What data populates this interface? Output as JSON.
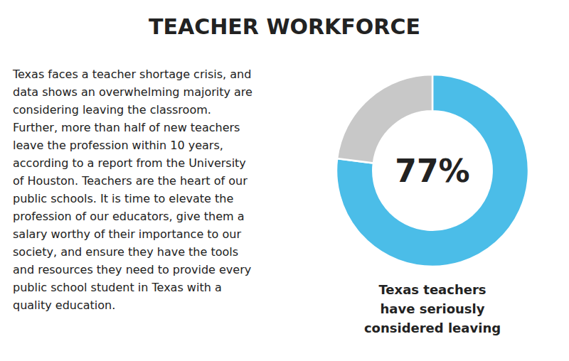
{
  "chart_data": {
    "type": "pie",
    "title": "TEACHER WORKFORCE",
    "body_text": [
      "Texas faces a teacher shortage crisis, and",
      "data shows an overwhelming majority are",
      "considering leaving the classroom.",
      "Further, more than half of new teachers",
      "leave the profession within 10 years,",
      "according to a report from the University",
      "of Houston. Teachers are the heart of our",
      "public schools. It is time to elevate the",
      "profession of our educators, give them a",
      "salary worthy of their importance to our",
      "society, and ensure they have the tools",
      "and resources they need to provide every",
      "public school student in Texas with a",
      "quality education."
    ],
    "values": [
      77,
      23
    ],
    "colors": [
      "#4BBDE8",
      "#C8C8C8"
    ],
    "center_text": "77%",
    "caption": "Texas teachers\nhave seriously\nconsidered leaving"
  }
}
